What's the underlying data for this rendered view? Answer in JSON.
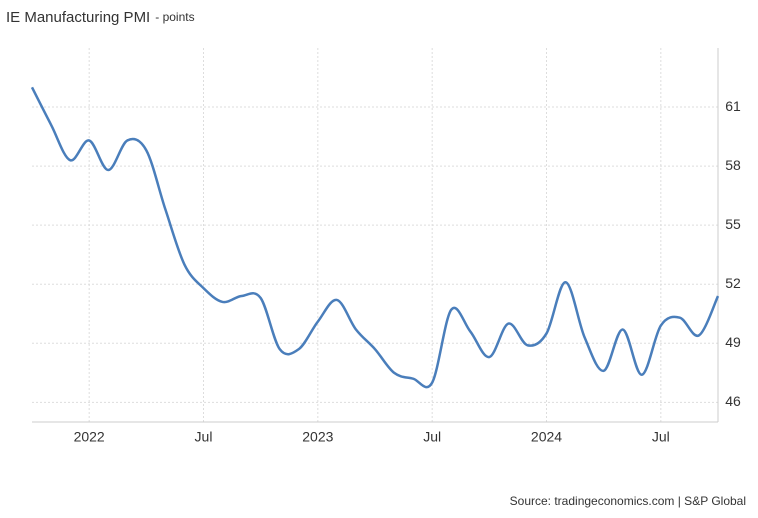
{
  "chart_data": {
    "type": "line",
    "title": "IE Manufacturing PMI",
    "subtitle": "- points",
    "source": "Source: tradingeconomics.com | S&P Global",
    "categories": [
      null,
      null,
      null,
      "2022",
      null,
      null,
      null,
      null,
      null,
      "Jul",
      null,
      null,
      null,
      null,
      null,
      "2023",
      null,
      null,
      null,
      null,
      null,
      "Jul",
      null,
      null,
      null,
      null,
      null,
      "2024",
      null,
      null,
      null,
      null,
      null,
      "Jul",
      null,
      null,
      null
    ],
    "series": [
      {
        "name": "IE Manufacturing PMI",
        "color": "#4a7ebb",
        "values": [
          62.0,
          60.1,
          58.3,
          59.3,
          57.8,
          59.3,
          58.8,
          55.8,
          53.0,
          51.8,
          51.1,
          51.4,
          51.3,
          48.7,
          48.7,
          50.1,
          51.2,
          49.7,
          48.7,
          47.5,
          47.2,
          47.0,
          50.7,
          49.6,
          48.3,
          50.0,
          48.9,
          49.5,
          52.1,
          49.3,
          47.6,
          49.7,
          47.4,
          49.9,
          50.3,
          49.4,
          51.4
        ]
      }
    ],
    "ylim": [
      45,
      64
    ],
    "yticks": [
      46,
      49,
      52,
      55,
      58,
      61
    ],
    "grid": true
  }
}
